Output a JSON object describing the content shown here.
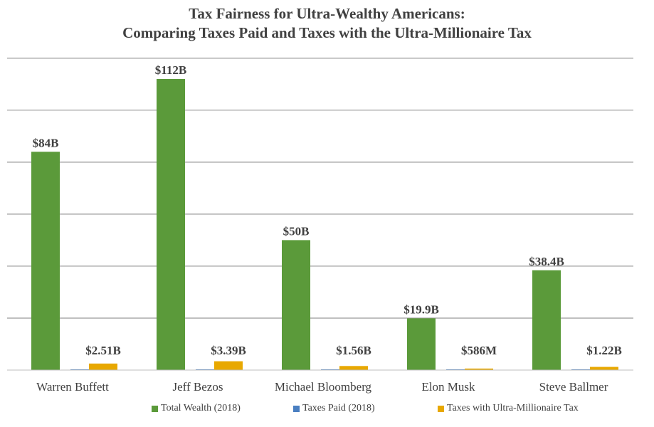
{
  "title_line1": "Tax Fairness for Ultra-Wealthy Americans:",
  "title_line2": "Comparing Taxes Paid and Taxes with the Ultra-Millionaire Tax",
  "chart_data": {
    "type": "bar",
    "categories": [
      "Warren Buffett",
      "Jeff Bezos",
      "Michael Bloomberg",
      "Elon Musk",
      "Steve Ballmer"
    ],
    "series": [
      {
        "name": "Total Wealth (2018)",
        "values": [
          84,
          112,
          50,
          19.9,
          38.4
        ],
        "labels": [
          "$84B",
          "$112B",
          "$50B",
          "$19.9B",
          "$38.4B"
        ],
        "color": "#5b9a3a"
      },
      {
        "name": "Taxes Paid (2018)",
        "values": [
          0.0,
          0.0,
          0.0,
          0.0,
          0.0
        ],
        "labels": [
          "",
          "",
          "",
          "",
          ""
        ],
        "color": "#4a7fc1"
      },
      {
        "name": "Taxes with Ultra-Millionaire Tax",
        "values": [
          2.51,
          3.39,
          1.56,
          0.586,
          1.22
        ],
        "labels": [
          "$2.51B",
          "$3.39B",
          "$1.56B",
          "$586M",
          "$1.22B"
        ],
        "color": "#e8a800"
      }
    ],
    "units": "billions of dollars",
    "ylim": [
      0,
      120
    ],
    "grid": true,
    "y_tick_labels_shown": false,
    "legend_position": "bottom"
  }
}
